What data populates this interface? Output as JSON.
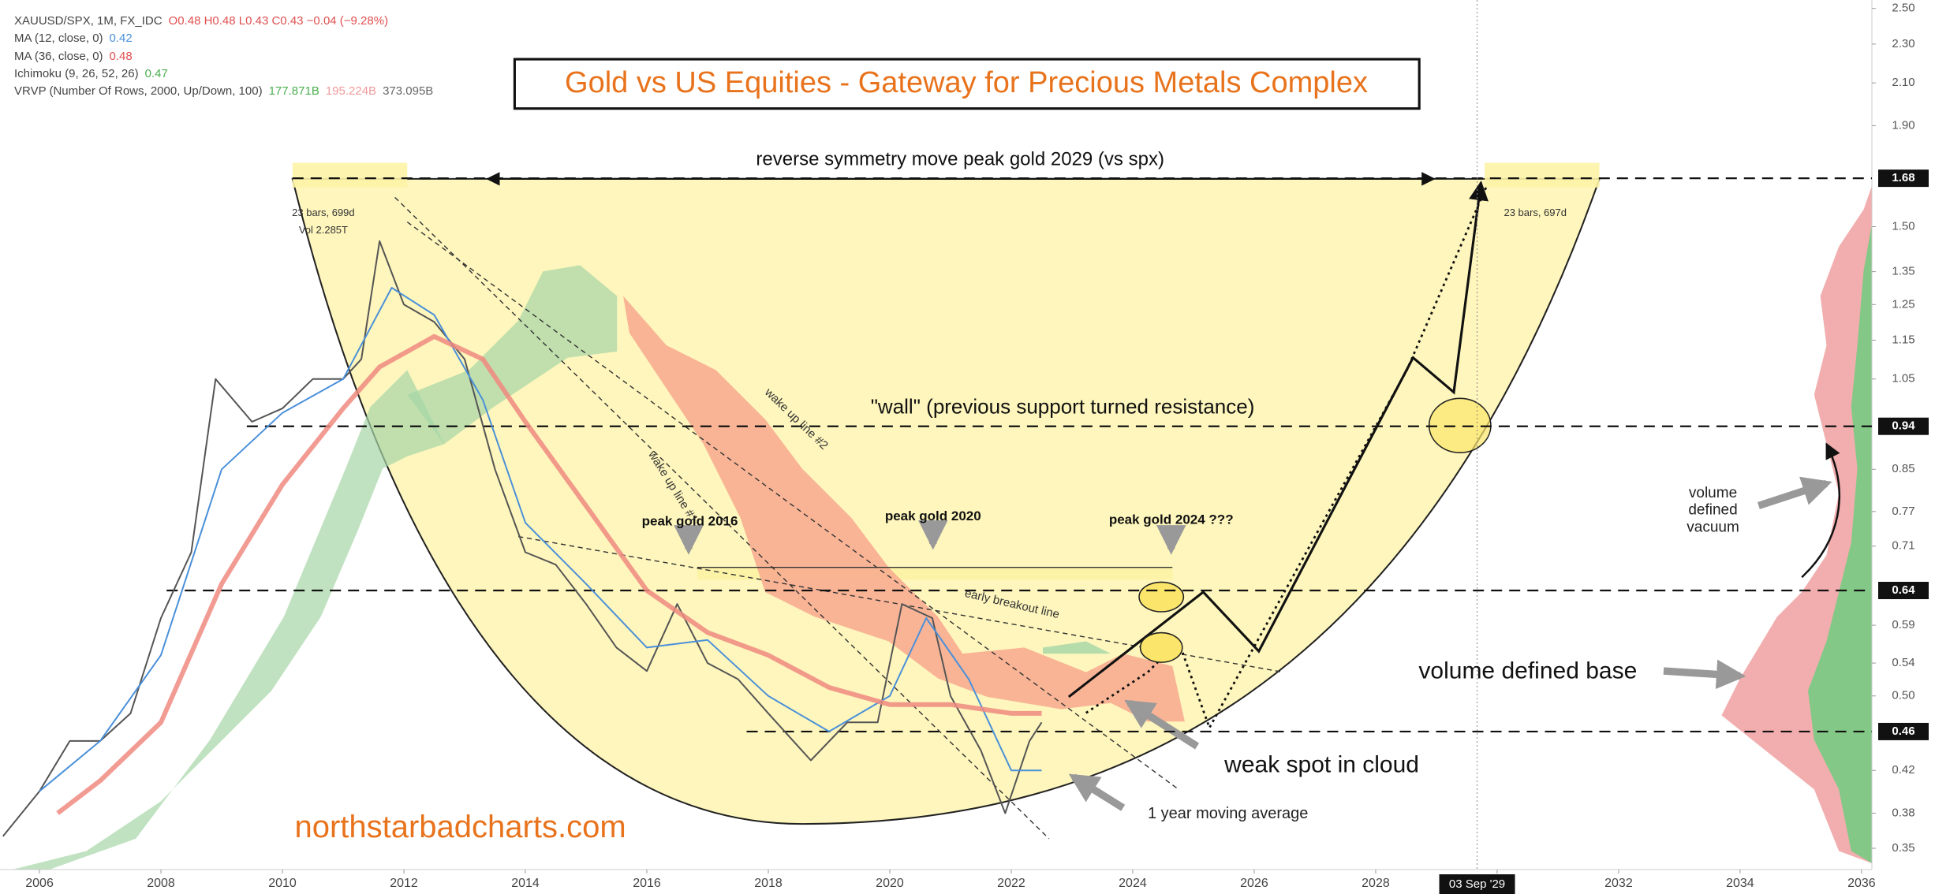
{
  "chart_data": {
    "type": "line",
    "log_scale": true,
    "title": "Gold vs US Equities - Gateway for Precious Metals Complex",
    "xlim": [
      2005.35,
      2036.17
    ],
    "ylim": [
      0.333,
      2.55
    ],
    "xticks": [
      2006,
      2008,
      2010,
      2012,
      2014,
      2016,
      2018,
      2020,
      2022,
      2024,
      2026,
      2028,
      2030,
      2032,
      2034,
      2036
    ],
    "yticks": [
      {
        "value": 2.5,
        "label": "2.50"
      },
      {
        "value": 2.3,
        "label": "2.30"
      },
      {
        "value": 2.1,
        "label": "2.10"
      },
      {
        "value": 1.9,
        "label": "1.90"
      },
      {
        "value": 1.5,
        "label": "1.50"
      },
      1.35,
      1.25,
      1.15,
      1.05,
      0.85,
      0.77,
      0.71,
      0.59,
      0.54,
      {
        "value": 0.5,
        "label": "0.50"
      },
      0.42,
      0.38,
      0.35
    ],
    "levels": [
      1.68,
      0.94,
      0.64,
      0.46
    ],
    "cursor": {
      "value": 2029.67,
      "label": "03 Sep '29"
    },
    "series": [
      {
        "name": "XAUUSD/SPX, 1M, FX_IDC",
        "reading": "O0.48 H0.48 L0.43 C0.43 −0.04 (−9.28%)",
        "color": "#555555",
        "reading_color": "#e05050",
        "x": [
          2005.4,
          2006,
          2006.5,
          2007,
          2007.5,
          2008,
          2008.5,
          2008.9,
          2009.5,
          2010,
          2010.5,
          2011,
          2011.3,
          2011.6,
          2012,
          2012.5,
          2013,
          2013.5,
          2014,
          2014.5,
          2015,
          2015.5,
          2016,
          2016.5,
          2017,
          2017.5,
          2018,
          2018.7,
          2019.3,
          2019.8,
          2020.2,
          2020.7,
          2021,
          2021.5,
          2021.9,
          2022.3,
          2022.5
        ],
        "values": [
          0.36,
          0.4,
          0.45,
          0.45,
          0.48,
          0.6,
          0.7,
          1.05,
          0.95,
          0.98,
          1.05,
          1.05,
          1.1,
          1.45,
          1.25,
          1.2,
          1.1,
          0.85,
          0.7,
          0.68,
          0.62,
          0.56,
          0.53,
          0.62,
          0.54,
          0.52,
          0.48,
          0.43,
          0.47,
          0.47,
          0.62,
          0.6,
          0.5,
          0.44,
          0.38,
          0.45,
          0.47
        ]
      },
      {
        "name": "MA (12, close, 0)",
        "reading": "0.42",
        "color": "#4a90d9",
        "reading_color": "#4a90d9",
        "x": [
          2006,
          2007,
          2008,
          2009,
          2010,
          2011,
          2011.8,
          2012.5,
          2013.3,
          2014,
          2015,
          2016,
          2017,
          2018,
          2019,
          2020,
          2020.6,
          2021.3,
          2022,
          2022.5
        ],
        "values": [
          0.4,
          0.45,
          0.55,
          0.85,
          0.97,
          1.05,
          1.3,
          1.22,
          1.0,
          0.75,
          0.65,
          0.56,
          0.57,
          0.5,
          0.46,
          0.5,
          0.6,
          0.52,
          0.42,
          0.42
        ]
      },
      {
        "name": "MA (36, close, 0)",
        "reading": "0.48",
        "color": "#f08a80",
        "reading_color": "#e05050",
        "x": [
          2006.3,
          2007,
          2008,
          2009,
          2010,
          2011,
          2011.6,
          2012.5,
          2013.3,
          2014,
          2015,
          2016,
          2017,
          2018,
          2019,
          2020,
          2021,
          2022,
          2022.5
        ],
        "values": [
          0.38,
          0.41,
          0.47,
          0.65,
          0.82,
          0.98,
          1.08,
          1.16,
          1.1,
          0.95,
          0.78,
          0.64,
          0.58,
          0.55,
          0.51,
          0.49,
          0.49,
          0.48,
          0.48
        ]
      }
    ],
    "indicators": [
      {
        "name": "Ichimoku (9, 26, 52, 26)",
        "readings": [
          {
            "text": "0.47",
            "color": "#4caf50"
          }
        ]
      },
      {
        "name": "VRVP (Number Of Rows, 2000, Up/Down, 100)",
        "readings": [
          {
            "text": "177.871B",
            "color": "#4caf50"
          },
          {
            "text": "195.224B",
            "color": "#ef9a9a"
          },
          {
            "text": "373.095B",
            "color": "#666666"
          }
        ]
      }
    ],
    "annotations": [
      "reverse symmetry move peak gold 2029 (vs spx)",
      "\"wall\" (previous support turned resistance)",
      "peak gold 2016",
      "peak gold 2020",
      "peak gold 2024 ???",
      "volume defined base",
      "weak spot in cloud",
      "1 year moving average",
      "northstarbadcharts.com",
      "wake up line #1",
      "wake up line #2",
      "early breakout line",
      "23 bars, 699d",
      "Vol 2.285T",
      "23 bars, 697d"
    ],
    "vacuum_note": [
      "volume",
      "defined",
      "vacuum"
    ]
  }
}
